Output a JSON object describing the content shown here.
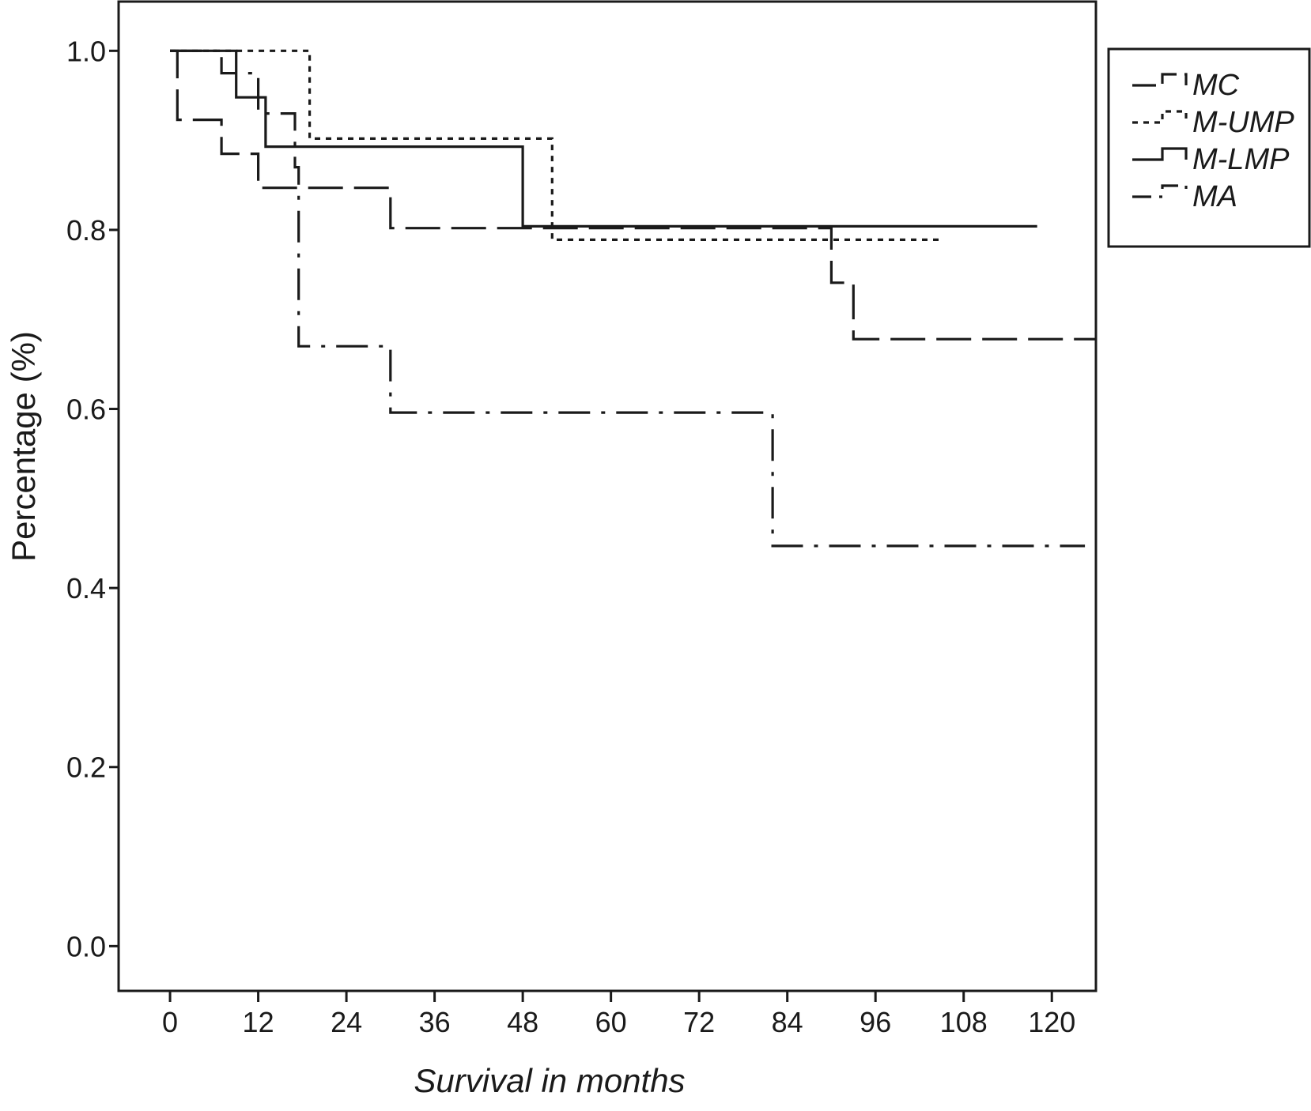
{
  "chart_data": {
    "type": "line",
    "step": true,
    "title": "",
    "xlabel": "Survival in months",
    "ylabel": "Percentage  (%)",
    "xlim": [
      -7,
      126
    ],
    "ylim": [
      -0.05,
      1.055
    ],
    "x_ticks": [
      0,
      12,
      24,
      36,
      48,
      60,
      72,
      84,
      96,
      108,
      120
    ],
    "x_tick_labels": [
      "0",
      "12",
      "24",
      "36",
      "48",
      "60",
      "72",
      "84",
      "96",
      "108",
      "120"
    ],
    "y_ticks": [
      0.0,
      0.2,
      0.4,
      0.6,
      0.8,
      1.0
    ],
    "y_tick_labels": [
      "0.0",
      "0.2",
      "0.4",
      "0.6",
      "0.8",
      "1.0"
    ],
    "grid": false,
    "legend_position": "top-right-outside",
    "series": [
      {
        "name": "MC",
        "dash": "long-dash",
        "points": [
          [
            0,
            1.0
          ],
          [
            1,
            0.923
          ],
          [
            7,
            0.885
          ],
          [
            12,
            0.847
          ],
          [
            30,
            0.802
          ],
          [
            90,
            0.741
          ],
          [
            93,
            0.678
          ],
          [
            126,
            0.678
          ]
        ]
      },
      {
        "name": "M-UMP",
        "dash": "dotted",
        "points": [
          [
            0,
            1.0
          ],
          [
            19,
            0.902
          ],
          [
            52,
            0.789
          ],
          [
            105,
            0.789
          ]
        ]
      },
      {
        "name": "M-LMP",
        "dash": "solid",
        "points": [
          [
            0,
            1.0
          ],
          [
            9,
            0.948
          ],
          [
            13,
            0.893
          ],
          [
            48,
            0.804
          ],
          [
            118,
            0.804
          ]
        ]
      },
      {
        "name": "MA",
        "dash": "dash-dot",
        "points": [
          [
            0,
            1.0
          ],
          [
            7,
            0.975
          ],
          [
            12,
            0.93
          ],
          [
            17,
            0.87
          ],
          [
            17.5,
            0.67
          ],
          [
            30,
            0.596
          ],
          [
            82,
            0.447
          ],
          [
            124.5,
            0.447
          ]
        ]
      }
    ]
  }
}
